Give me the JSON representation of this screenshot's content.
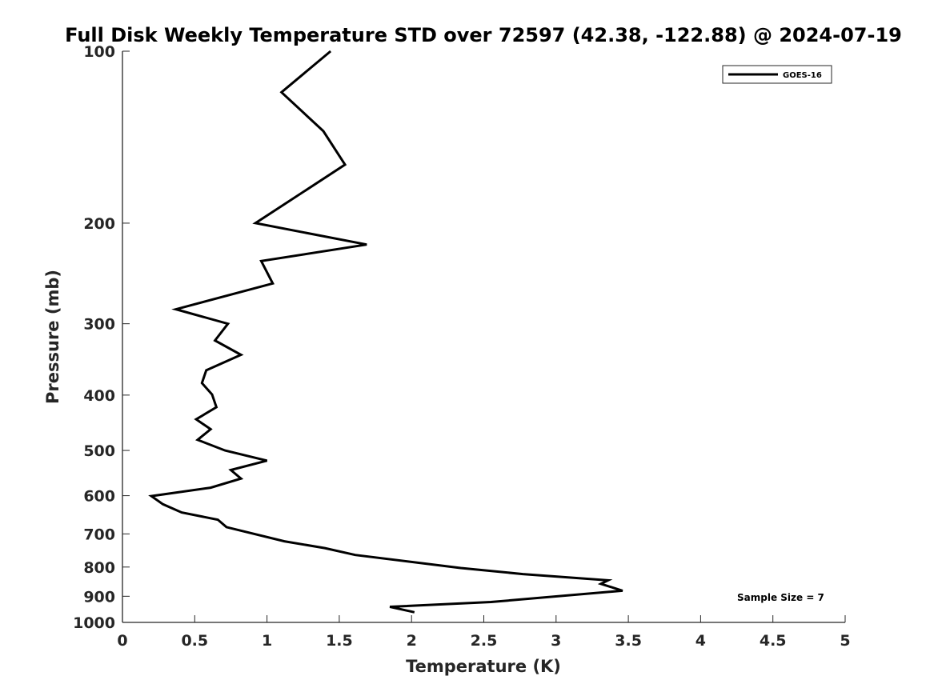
{
  "chart_data": {
    "type": "line",
    "title": "Full Disk Weekly Temperature STD over 72597 (42.38, -122.88) @ 2024-07-19",
    "xlabel": "Temperature (K)",
    "ylabel": "Pressure (mb)",
    "xlim": [
      0,
      5
    ],
    "ylim": [
      100,
      1000
    ],
    "y_scale": "log",
    "y_reversed": true,
    "x_ticks": [
      0,
      0.5,
      1,
      1.5,
      2,
      2.5,
      3,
      3.5,
      4,
      4.5,
      5
    ],
    "x_tick_labels": [
      "0",
      "0.5",
      "1",
      "1.5",
      "2",
      "2.5",
      "3",
      "3.5",
      "4",
      "4.5",
      "5"
    ],
    "y_ticks": [
      100,
      200,
      300,
      400,
      500,
      600,
      700,
      800,
      900,
      1000
    ],
    "y_tick_labels": [
      "100",
      "200",
      "300",
      "400",
      "500",
      "600",
      "700",
      "800",
      "900",
      "1000"
    ],
    "grid": false,
    "legend": "top-right",
    "annotation": "Sample Size = 7",
    "series": [
      {
        "name": "GOES-16",
        "color": "#000000",
        "x": [
          1.44,
          1.1,
          1.39,
          1.54,
          0.92,
          1.69,
          0.96,
          1.04,
          0.37,
          0.73,
          0.64,
          0.82,
          0.58,
          0.55,
          0.62,
          0.65,
          0.51,
          0.61,
          0.52,
          0.71,
          1.0,
          0.75,
          0.82,
          0.61,
          0.2,
          0.28,
          0.41,
          0.66,
          0.72,
          1.12,
          1.4,
          1.61,
          2.34,
          2.77,
          3.36,
          3.31,
          3.46,
          2.55,
          1.85,
          2.02
        ],
        "y": [
          100,
          118,
          138,
          158,
          200,
          218,
          233,
          255,
          283,
          300,
          321,
          340,
          362,
          381,
          399,
          420,
          441,
          459,
          479,
          500,
          521,
          541,
          560,
          581,
          601,
          621,
          642,
          661,
          681,
          721,
          741,
          762,
          803,
          823,
          844,
          856,
          880,
          921,
          939,
          960
        ]
      }
    ]
  }
}
